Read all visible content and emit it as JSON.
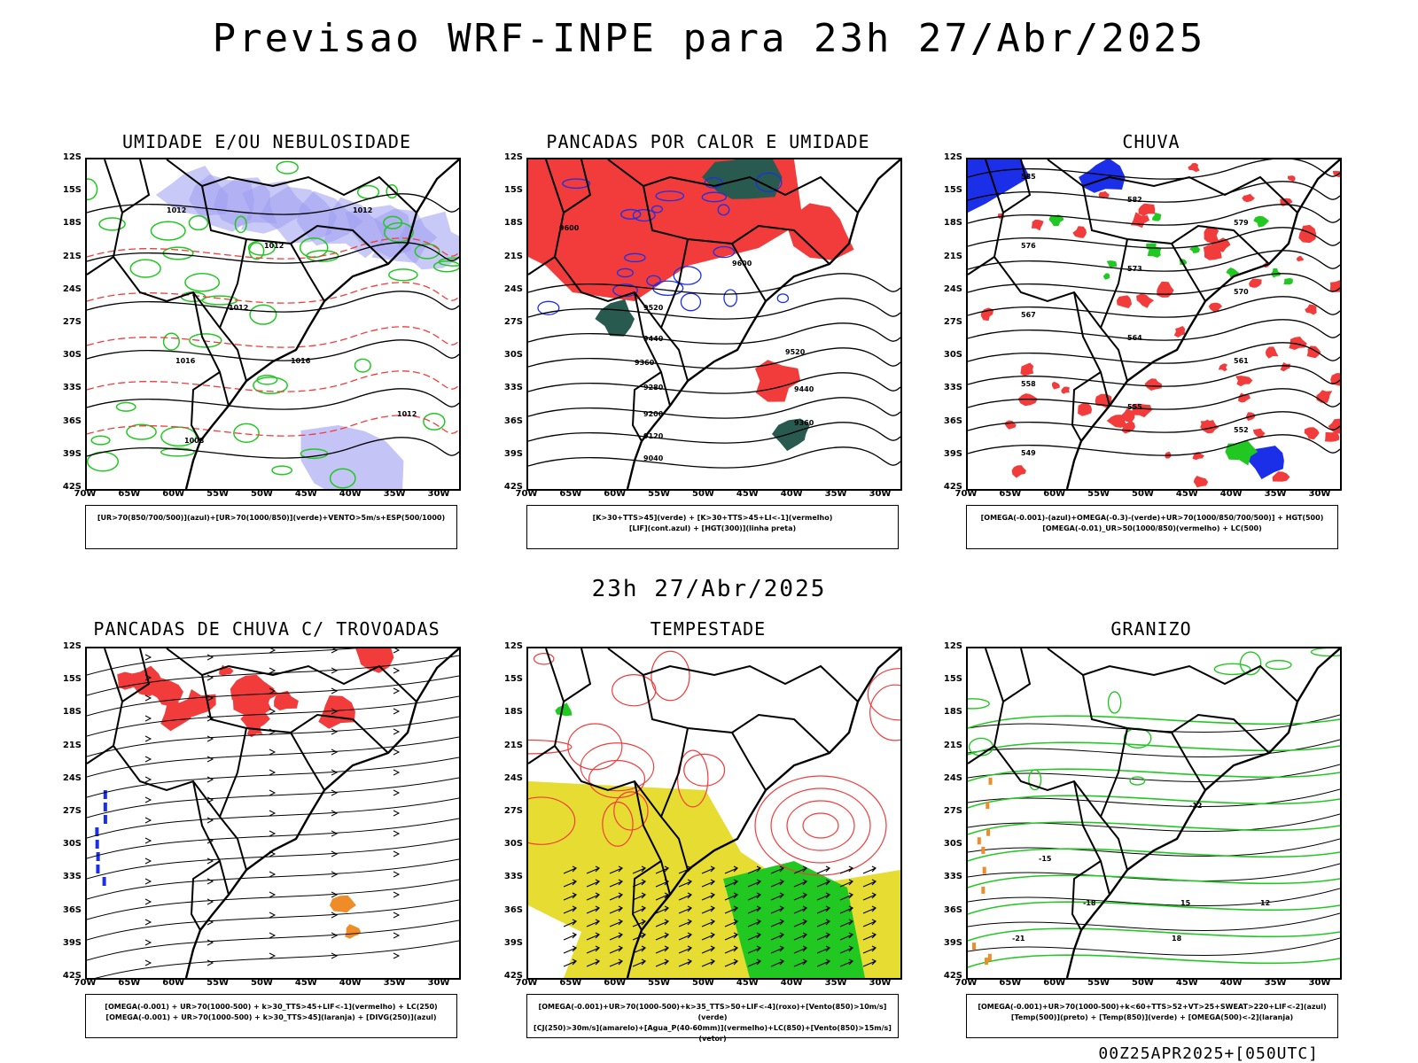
{
  "header": {
    "title": "Previsao WRF-INPE  para 23h 27/Abr/2025"
  },
  "mid_date": "23h 27/Abr/2025",
  "footer": "00Z25APR2025+[050UTC]",
  "axes": {
    "lat": [
      "12S",
      "15S",
      "18S",
      "21S",
      "24S",
      "27S",
      "30S",
      "33S",
      "36S",
      "39S",
      "42S"
    ],
    "lon": [
      "70W",
      "65W",
      "60W",
      "55W",
      "50W",
      "45W",
      "40W",
      "35W",
      "30W"
    ]
  },
  "panels": [
    {
      "title": "UMIDADE E/OU NEBULOSIDADE",
      "legend": [
        "[UR>70(850/700/500)](azul)+[UR>70(1000/850)](verde)+VENTO>5m/s+ESP(500/1000)"
      ]
    },
    {
      "title": "PANCADAS POR CALOR E UMIDADE",
      "legend": [
        "[K>30+TTS>45](verde) + [K>30+TTS>45+LI<-1](vermelho)",
        "[LIF](cont.azul) + [HGT(300)](linha preta)"
      ]
    },
    {
      "title": "CHUVA",
      "legend": [
        "[OMEGA(-0.001)-(azul)+OMEGA(-0.3)-(verde)+UR>70(1000/850/700/500)] + HGT(500)",
        "[OMEGA(-0.01)_UR>50(1000/850)(vermelho) + LC(500)"
      ]
    },
    {
      "title": "PANCADAS DE CHUVA C/ TROVOADAS",
      "legend": [
        "[OMEGA(-0.001) + UR>70(1000-500) + k>30_TTS>45+LIF<-1](vermelho) + LC(250)",
        "[OMEGA(-0.001) + UR>70(1000-500) + k>30_TTS>45](laranja) + [DIVG(250)](azul)"
      ]
    },
    {
      "title": "TEMPESTADE",
      "legend": [
        "[OMEGA(-0.001)+UR>70(1000-500)+k>35_TTS>50+LIF<-4](roxo)+[Vento(850)>10m/s](verde)",
        "[CJ(250)>30m/s](amarelo)+[Agua_P(40-60mm)](vermelho)+LC(850)+[Vento(850)>15m/s](vetor)"
      ]
    },
    {
      "title": "GRANIZO",
      "legend": [
        "[OMEGA(-0.001)+UR>70(1000-500)+k<60+TTS>52+VT>25+SWEAT>220+LIF<-2](azul)",
        "[Temp(500)](preto) + [Temp(850)](verde) + [OMEGA(500)<-2](laranja)"
      ]
    }
  ],
  "contour_labels": {
    "p1": [
      "1012",
      "1012",
      "1012",
      "1016",
      "1016",
      "1012",
      "1008",
      "1012"
    ],
    "p2": [
      "9600",
      "9520",
      "9440",
      "9360",
      "9280",
      "9200",
      "9120",
      "9040",
      "9600",
      "9520",
      "9440",
      "9360"
    ],
    "p3": [
      "585",
      "582",
      "579",
      "576",
      "573",
      "570",
      "567",
      "564",
      "561",
      "558",
      "555",
      "552",
      "549"
    ],
    "p6": [
      "-12",
      "-15",
      "-18",
      "-21",
      "12",
      "15",
      "18"
    ]
  },
  "colors": {
    "blue": "#1c2fe8",
    "red": "#f23c3c",
    "green": "#22c822",
    "orange": "#f08c28",
    "yellow": "#e6dc32",
    "lavender": "#9c9cf0",
    "darkteal": "#285a50",
    "purple": "#9a2ad0"
  }
}
